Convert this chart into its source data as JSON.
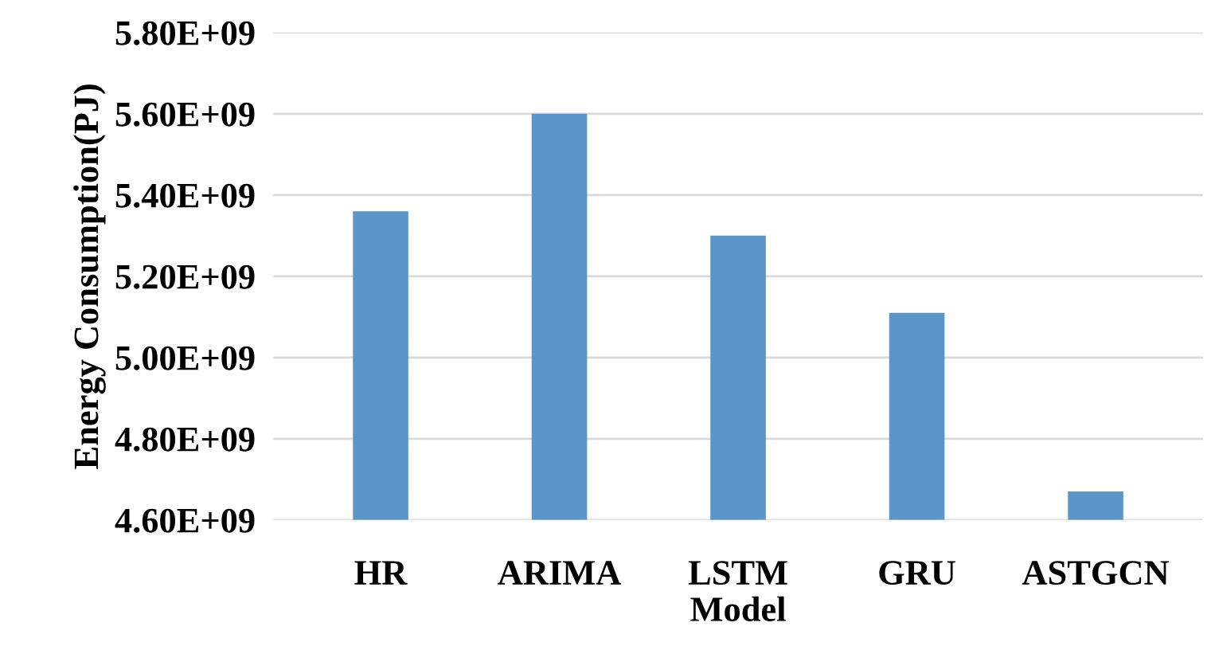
{
  "chart_data": {
    "type": "bar",
    "xlabel": "Model",
    "ylabel": "Energy Consumption(PJ)",
    "categories": [
      "HR",
      "ARIMA",
      "LSTM",
      "GRU",
      "ASTGCN"
    ],
    "values": [
      5360000000.0,
      5600000000.0,
      5300000000.0,
      5110000000.0,
      4670000000.0
    ],
    "color": "#5b96cb",
    "ylim": [
      4600000000.0,
      5800000000.0
    ],
    "yticks": [
      {
        "value": 4600000000.0,
        "label": "4.60E+09"
      },
      {
        "value": 4800000000.0,
        "label": "4.80E+09"
      },
      {
        "value": 5000000000.0,
        "label": "5.00E+09"
      },
      {
        "value": 5200000000.0,
        "label": "5.20E+09"
      },
      {
        "value": 5400000000.0,
        "label": "5.40E+09"
      },
      {
        "value": 5600000000.0,
        "label": "5.60E+09"
      },
      {
        "value": 5800000000.0,
        "label": "5.80E+09"
      }
    ],
    "grid": "y"
  }
}
